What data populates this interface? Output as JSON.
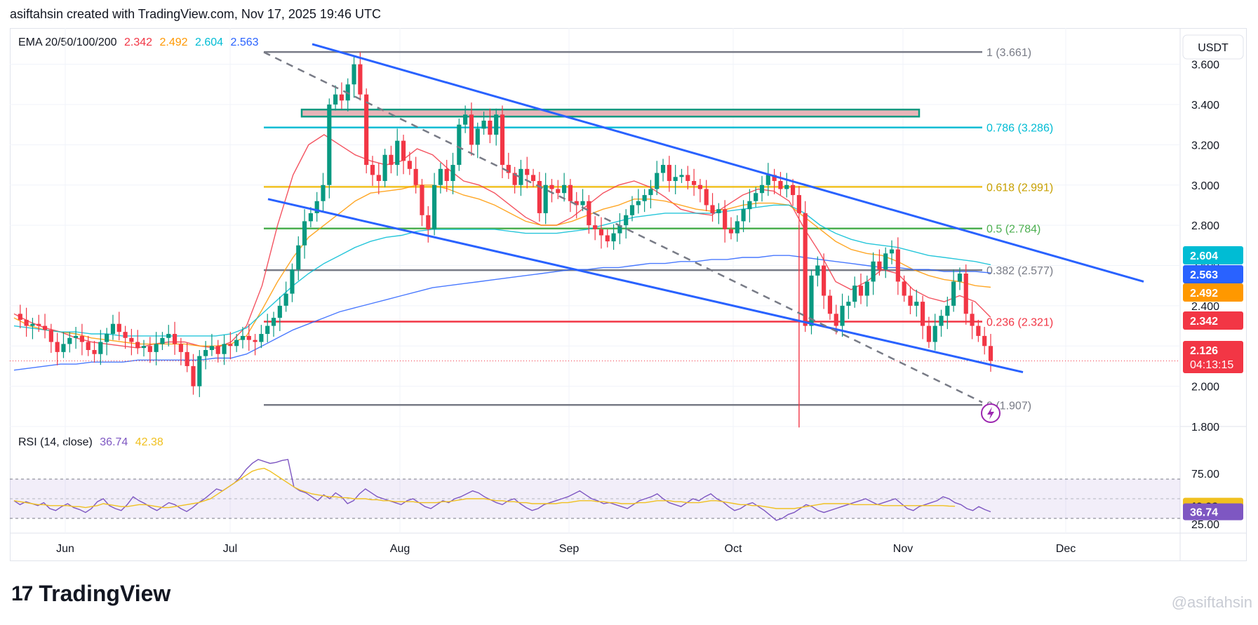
{
  "header": {
    "credit": "asiftahsin created with TradingView.com, Nov 17, 2025 19:46 UTC"
  },
  "indicators": {
    "ema": {
      "label": "EMA 20/50/100/200",
      "values": [
        "2.342",
        "2.492",
        "2.604",
        "2.563"
      ],
      "colors": [
        "#f23645",
        "#ff9800",
        "#00bcd4",
        "#2962ff"
      ]
    },
    "rsi": {
      "label": "RSI (14, close)",
      "values": [
        "36.74",
        "42.38"
      ],
      "colors": [
        "#7e57c2",
        "#f0c020"
      ]
    }
  },
  "quote_currency": "USDT",
  "footer": {
    "brand": "TradingView",
    "logo_mark": "17",
    "watermark": "@asiftahsin"
  },
  "colors": {
    "up": "#089981",
    "down": "#f23645",
    "trendline": "#2962ff",
    "fib_base": "#787b86"
  },
  "chart_data": [
    {
      "type": "candlestick",
      "title": "",
      "x_ticks": [
        "Jun",
        "Jul",
        "Aug",
        "Sep",
        "Oct",
        "Nov",
        "Dec"
      ],
      "y_ticks": [
        "1.800",
        "2.000",
        "2.200",
        "2.400",
        "2.600",
        "2.800",
        "3.000",
        "3.200",
        "3.400",
        "3.600"
      ],
      "ylim": [
        1.8,
        3.78
      ],
      "ohlc_close_path": [
        2.36,
        2.33,
        2.3,
        2.31,
        2.3,
        2.28,
        2.22,
        2.17,
        2.21,
        2.24,
        2.25,
        2.22,
        2.18,
        2.16,
        2.22,
        2.26,
        2.31,
        2.27,
        2.24,
        2.22,
        2.19,
        2.2,
        2.17,
        2.21,
        2.24,
        2.26,
        2.21,
        2.17,
        2.1,
        2.0,
        2.15,
        2.18,
        2.2,
        2.16,
        2.21,
        2.2,
        2.23,
        2.25,
        2.23,
        2.22,
        2.26,
        2.3,
        2.34,
        2.4,
        2.46,
        2.58,
        2.7,
        2.82,
        2.86,
        2.92,
        3.0,
        3.4,
        3.45,
        3.42,
        3.5,
        3.6,
        3.45,
        3.1,
        3.05,
        3.02,
        3.15,
        3.1,
        3.22,
        3.12,
        3.08,
        3.0,
        2.85,
        2.78,
        3.0,
        3.08,
        3.02,
        3.1,
        3.3,
        3.35,
        3.2,
        3.28,
        3.32,
        3.25,
        3.35,
        3.1,
        3.06,
        3.0,
        3.08,
        3.05,
        3.02,
        2.86,
        3.0,
        2.98,
        2.96,
        3.0,
        2.92,
        2.9,
        2.92,
        2.8,
        2.78,
        2.75,
        2.72,
        2.76,
        2.8,
        2.85,
        2.9,
        2.92,
        2.95,
        2.98,
        3.06,
        3.1,
        3.02,
        3.04,
        3.05,
        3.02,
        3.0,
        2.98,
        2.9,
        2.86,
        2.88,
        2.78,
        2.76,
        2.82,
        2.88,
        2.92,
        2.96,
        3.0,
        3.05,
        3.02,
        2.98,
        3.0,
        2.95,
        2.86,
        2.3,
        2.55,
        2.6,
        2.45,
        2.36,
        2.3,
        2.4,
        2.42,
        2.5,
        2.45,
        2.52,
        2.62,
        2.58,
        2.66,
        2.68,
        2.52,
        2.45,
        2.4,
        2.42,
        2.3,
        2.22,
        2.3,
        2.35,
        2.4,
        2.52,
        2.56,
        2.36,
        2.3,
        2.25,
        2.2,
        2.126
      ],
      "ema": {
        "series": [
          {
            "name": "EMA 20",
            "last": 2.342,
            "path": [
              2.36,
              2.32,
              2.29,
              2.27,
              2.24,
              2.22,
              2.21,
              2.2,
              2.19,
              2.21,
              2.22,
              2.22,
              2.2,
              2.19,
              2.22,
              2.3,
              2.5,
              2.8,
              3.05,
              3.2,
              3.25,
              3.2,
              3.15,
              3.12,
              3.1,
              3.12,
              3.18,
              3.15,
              3.08,
              3.02,
              3.0,
              2.96,
              2.9,
              2.84,
              2.8,
              2.8,
              2.84,
              2.9,
              2.96,
              3.0,
              3.02,
              2.99,
              2.94,
              2.88,
              2.86,
              2.85,
              2.9,
              2.95,
              2.98,
              2.97,
              2.92,
              2.78,
              2.66,
              2.52,
              2.48,
              2.52,
              2.58,
              2.56,
              2.48,
              2.44,
              2.42,
              2.45,
              2.42,
              2.342
            ]
          },
          {
            "name": "EMA 50",
            "last": 2.492,
            "path": [
              2.34,
              2.3,
              2.28,
              2.27,
              2.26,
              2.24,
              2.23,
              2.22,
              2.21,
              2.21,
              2.21,
              2.21,
              2.2,
              2.2,
              2.21,
              2.25,
              2.38,
              2.52,
              2.64,
              2.74,
              2.8,
              2.86,
              2.92,
              2.96,
              2.97,
              2.98,
              3.0,
              3.0,
              2.98,
              2.95,
              2.93,
              2.9,
              2.86,
              2.82,
              2.8,
              2.8,
              2.82,
              2.85,
              2.88,
              2.9,
              2.93,
              2.93,
              2.92,
              2.9,
              2.88,
              2.87,
              2.88,
              2.9,
              2.91,
              2.91,
              2.9,
              2.84,
              2.78,
              2.72,
              2.68,
              2.66,
              2.65,
              2.62,
              2.58,
              2.55,
              2.53,
              2.52,
              2.5,
              2.492
            ]
          },
          {
            "name": "EMA 100",
            "last": 2.604,
            "path": [
              2.3,
              2.29,
              2.28,
              2.27,
              2.27,
              2.26,
              2.26,
              2.25,
              2.25,
              2.25,
              2.25,
              2.25,
              2.25,
              2.25,
              2.26,
              2.29,
              2.36,
              2.43,
              2.5,
              2.56,
              2.61,
              2.65,
              2.69,
              2.72,
              2.74,
              2.75,
              2.77,
              2.78,
              2.78,
              2.78,
              2.78,
              2.78,
              2.77,
              2.76,
              2.76,
              2.76,
              2.77,
              2.78,
              2.8,
              2.82,
              2.84,
              2.85,
              2.86,
              2.86,
              2.86,
              2.86,
              2.87,
              2.88,
              2.89,
              2.9,
              2.9,
              2.86,
              2.8,
              2.76,
              2.73,
              2.71,
              2.7,
              2.69,
              2.67,
              2.65,
              2.64,
              2.63,
              2.62,
              2.604
            ]
          },
          {
            "name": "EMA 200",
            "last": 2.563,
            "path": [
              2.08,
              2.09,
              2.1,
              2.11,
              2.11,
              2.12,
              2.12,
              2.12,
              2.13,
              2.13,
              2.13,
              2.13,
              2.13,
              2.14,
              2.14,
              2.16,
              2.2,
              2.24,
              2.28,
              2.31,
              2.34,
              2.37,
              2.39,
              2.41,
              2.43,
              2.45,
              2.47,
              2.49,
              2.5,
              2.51,
              2.52,
              2.53,
              2.54,
              2.55,
              2.56,
              2.57,
              2.58,
              2.58,
              2.59,
              2.59,
              2.6,
              2.61,
              2.61,
              2.62,
              2.62,
              2.63,
              2.63,
              2.64,
              2.64,
              2.65,
              2.65,
              2.64,
              2.63,
              2.62,
              2.61,
              2.6,
              2.59,
              2.59,
              2.58,
              2.58,
              2.57,
              2.57,
              2.57,
              2.563
            ]
          }
        ]
      },
      "fib_levels": [
        {
          "ratio": "1",
          "value": 3.661,
          "label": "1 (3.661)",
          "color": "#787b86"
        },
        {
          "ratio": "0.786",
          "value": 3.286,
          "label": "0.786 (3.286)",
          "color": "#00bcd4"
        },
        {
          "ratio": "0.618",
          "value": 2.991,
          "label": "0.618 (2.991)",
          "color": "#f0c020"
        },
        {
          "ratio": "0.5",
          "value": 2.784,
          "label": "0.5 (2.784)",
          "color": "#4caf50"
        },
        {
          "ratio": "0.382",
          "value": 2.577,
          "label": "0.382 (2.577)",
          "color": "#787b86"
        },
        {
          "ratio": "0.236",
          "value": 2.321,
          "label": "0.236 (2.321)",
          "color": "#f23645"
        },
        {
          "ratio": "0",
          "value": 1.907,
          "label": "0 (1.907)",
          "color": "#787b86"
        }
      ],
      "resistance_zone": {
        "low": 3.34,
        "high": 3.375
      },
      "price_labels": [
        {
          "text": "2.604",
          "color": "#00bcd4"
        },
        {
          "text": "2.563",
          "color": "#2962ff"
        },
        {
          "text": "2.492",
          "color": "#ff9800"
        },
        {
          "text": "2.342",
          "color": "#f23645"
        },
        {
          "text": "2.126",
          "sub": "04:13:15",
          "color": "#f23645"
        }
      ],
      "current_price": 2.126
    },
    {
      "type": "line",
      "title": "",
      "y_ticks": [
        "25.00",
        "75.00"
      ],
      "ylim": [
        15,
        95
      ],
      "band": [
        30,
        70
      ],
      "series": [
        {
          "name": "RSI",
          "last": 36.74,
          "values": [
            48,
            44,
            47,
            45,
            43,
            46,
            40,
            38,
            42,
            45,
            41,
            39,
            36,
            40,
            47,
            50,
            43,
            40,
            38,
            44,
            52,
            48,
            45,
            41,
            38,
            42,
            46,
            44,
            40,
            37,
            41,
            46,
            50,
            55,
            60,
            58,
            62,
            66,
            72,
            80,
            86,
            90,
            88,
            86,
            87,
            89,
            90,
            62,
            58,
            56,
            52,
            48,
            54,
            50,
            56,
            52,
            45,
            48,
            55,
            60,
            56,
            52,
            50,
            48,
            46,
            44,
            48,
            50,
            46,
            42,
            40,
            44,
            48,
            46,
            50,
            52,
            55,
            58,
            56,
            52,
            49,
            46,
            44,
            48,
            50,
            45,
            41,
            38,
            40,
            44,
            46,
            48,
            50,
            52,
            55,
            58,
            54,
            50,
            48,
            45,
            46,
            44,
            42,
            40,
            44,
            48,
            50,
            52,
            55,
            50,
            46,
            44,
            42,
            46,
            50,
            48,
            52,
            55,
            50,
            47,
            42,
            38,
            40,
            44,
            46,
            42,
            38,
            33,
            28,
            30,
            34,
            36,
            40,
            44,
            42,
            38,
            36,
            38,
            40,
            42,
            44,
            46,
            48,
            50,
            47,
            44,
            46,
            48,
            50,
            45,
            40,
            38,
            42,
            44,
            46,
            48,
            52,
            50,
            46,
            44,
            40,
            38,
            42,
            39,
            36.74
          ]
        },
        {
          "name": "RSI MA",
          "last": 42.38,
          "values": [
            48,
            47,
            46,
            45,
            44,
            44,
            43,
            43,
            43,
            43,
            42,
            42,
            41,
            42,
            43,
            45,
            44,
            43,
            42,
            42,
            43,
            44,
            44,
            43,
            42,
            41,
            41,
            42,
            43,
            44,
            45,
            46,
            48,
            50,
            54,
            58,
            62,
            66,
            70,
            74,
            78,
            80,
            81,
            78,
            74,
            70,
            66,
            62,
            59,
            57,
            55,
            54,
            53,
            52,
            52,
            51,
            51,
            50,
            50,
            50,
            49,
            49,
            48,
            48,
            47,
            47,
            47,
            47,
            46,
            46,
            46,
            46,
            47,
            47,
            48,
            49,
            50,
            50,
            50,
            50,
            49,
            48,
            48,
            47,
            47,
            46,
            46,
            45,
            45,
            45,
            45,
            45,
            46,
            46,
            47,
            48,
            48,
            48,
            47,
            47,
            46,
            46,
            45,
            45,
            45,
            46,
            46,
            47,
            48,
            48,
            48,
            47,
            47,
            46,
            46,
            46,
            47,
            48,
            48,
            47,
            46,
            45,
            44,
            44,
            43,
            43,
            42,
            41,
            40,
            40,
            40,
            40,
            41,
            42,
            43,
            44,
            45,
            45,
            45,
            45,
            45,
            44,
            44,
            44,
            44,
            44,
            43,
            43,
            43,
            43,
            43,
            43,
            43,
            43,
            43,
            43,
            43,
            42.5,
            42.38
          ]
        }
      ],
      "price_labels": [
        {
          "text": "42.38",
          "color": "#f0c020"
        },
        {
          "text": "36.74",
          "color": "#7e57c2"
        }
      ]
    }
  ]
}
